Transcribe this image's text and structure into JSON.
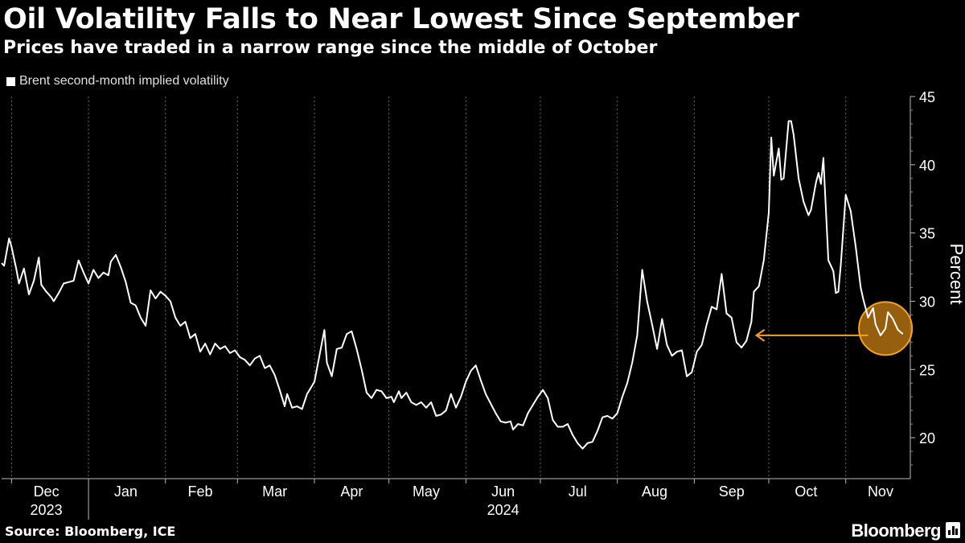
{
  "header": {
    "title": "Oil Volatility Falls to Near Lowest Since September",
    "subtitle": "Prices have traded in a narrow range since the middle of October"
  },
  "footer": {
    "source": "Source: Bloomberg, ICE",
    "brand": "Bloomberg"
  },
  "chart_data": {
    "type": "line",
    "title": "Oil Volatility Falls to Near Lowest Since September",
    "subtitle": "Prices have traded in a narrow range since the middle of October",
    "xlabel": "",
    "ylabel": "Percent",
    "ylim": [
      17,
      45
    ],
    "yticks": [
      20,
      25,
      30,
      35,
      40,
      45
    ],
    "grid": "vertical dashed at month boundaries",
    "legend_position": "top-left",
    "x_range": [
      "2023-11-27",
      "2024-11-27"
    ],
    "month_labels": [
      {
        "label": "Dec",
        "date": "2023-12-15"
      },
      {
        "label": "Jan",
        "date": "2024-01-16"
      },
      {
        "label": "Feb",
        "date": "2024-02-15"
      },
      {
        "label": "Mar",
        "date": "2024-03-16"
      },
      {
        "label": "Apr",
        "date": "2024-04-16"
      },
      {
        "label": "May",
        "date": "2024-05-16"
      },
      {
        "label": "Jun",
        "date": "2024-06-16"
      },
      {
        "label": "Jul",
        "date": "2024-07-16"
      },
      {
        "label": "Aug",
        "date": "2024-08-16"
      },
      {
        "label": "Sep",
        "date": "2024-09-16"
      },
      {
        "label": "Oct",
        "date": "2024-10-16"
      },
      {
        "label": "Nov",
        "date": "2024-11-15"
      }
    ],
    "month_boundaries": [
      "2023-12-01",
      "2024-01-01",
      "2024-02-01",
      "2024-03-01",
      "2024-04-01",
      "2024-05-01",
      "2024-06-01",
      "2024-07-01",
      "2024-08-01",
      "2024-09-01",
      "2024-10-01",
      "2024-11-01"
    ],
    "year_labels": [
      {
        "label": "2023",
        "date": "2023-12-15"
      },
      {
        "label": "2024",
        "date": "2024-06-16"
      }
    ],
    "year_divider": "2024-01-01",
    "series": [
      {
        "name": "Brent second-month implied volatility",
        "color": "#ffffff",
        "points": [
          [
            "2023-11-27",
            32.8
          ],
          [
            "2023-11-28",
            32.6
          ],
          [
            "2023-11-30",
            34.6
          ],
          [
            "2023-12-01",
            34.0
          ],
          [
            "2023-12-03",
            32.3
          ],
          [
            "2023-12-04",
            31.3
          ],
          [
            "2023-12-06",
            32.4
          ],
          [
            "2023-12-08",
            30.5
          ],
          [
            "2023-12-10",
            31.5
          ],
          [
            "2023-12-12",
            33.2
          ],
          [
            "2023-12-13",
            31.2
          ],
          [
            "2023-12-15",
            30.7
          ],
          [
            "2023-12-17",
            30.3
          ],
          [
            "2023-12-18",
            30.0
          ],
          [
            "2023-12-20",
            30.6
          ],
          [
            "2023-12-22",
            31.3
          ],
          [
            "2023-12-24",
            31.4
          ],
          [
            "2023-12-26",
            31.5
          ],
          [
            "2023-12-28",
            33.0
          ],
          [
            "2023-12-30",
            32.1
          ],
          [
            "2024-01-01",
            31.3
          ],
          [
            "2024-01-03",
            32.3
          ],
          [
            "2024-01-05",
            31.7
          ],
          [
            "2024-01-07",
            32.1
          ],
          [
            "2024-01-09",
            31.9
          ],
          [
            "2024-01-10",
            32.9
          ],
          [
            "2024-01-12",
            33.4
          ],
          [
            "2024-01-14",
            32.5
          ],
          [
            "2024-01-16",
            31.4
          ],
          [
            "2024-01-18",
            29.9
          ],
          [
            "2024-01-20",
            29.7
          ],
          [
            "2024-01-22",
            28.8
          ],
          [
            "2024-01-24",
            28.2
          ],
          [
            "2024-01-26",
            30.8
          ],
          [
            "2024-01-28",
            30.2
          ],
          [
            "2024-01-30",
            30.7
          ],
          [
            "2024-02-01",
            30.4
          ],
          [
            "2024-02-03",
            30.0
          ],
          [
            "2024-02-05",
            28.8
          ],
          [
            "2024-02-07",
            28.2
          ],
          [
            "2024-02-09",
            28.5
          ],
          [
            "2024-02-11",
            27.3
          ],
          [
            "2024-02-13",
            27.6
          ],
          [
            "2024-02-15",
            26.3
          ],
          [
            "2024-02-17",
            26.9
          ],
          [
            "2024-02-19",
            26.1
          ],
          [
            "2024-02-21",
            26.9
          ],
          [
            "2024-02-23",
            26.5
          ],
          [
            "2024-02-25",
            26.7
          ],
          [
            "2024-02-27",
            26.2
          ],
          [
            "2024-02-29",
            26.4
          ],
          [
            "2024-03-02",
            25.9
          ],
          [
            "2024-03-04",
            25.7
          ],
          [
            "2024-03-06",
            25.3
          ],
          [
            "2024-03-08",
            25.8
          ],
          [
            "2024-03-10",
            26.0
          ],
          [
            "2024-03-12",
            25.1
          ],
          [
            "2024-03-14",
            25.3
          ],
          [
            "2024-03-16",
            24.6
          ],
          [
            "2024-03-18",
            23.5
          ],
          [
            "2024-03-20",
            22.3
          ],
          [
            "2024-03-21",
            23.2
          ],
          [
            "2024-03-23",
            22.2
          ],
          [
            "2024-03-25",
            22.3
          ],
          [
            "2024-03-27",
            22.1
          ],
          [
            "2024-03-29",
            23.2
          ],
          [
            "2024-04-01",
            24.1
          ],
          [
            "2024-04-03",
            26.0
          ],
          [
            "2024-04-05",
            27.9
          ],
          [
            "2024-04-06",
            25.5
          ],
          [
            "2024-04-08",
            24.5
          ],
          [
            "2024-04-10",
            26.5
          ],
          [
            "2024-04-12",
            26.6
          ],
          [
            "2024-04-14",
            27.6
          ],
          [
            "2024-04-16",
            27.8
          ],
          [
            "2024-04-18",
            26.5
          ],
          [
            "2024-04-20",
            25.0
          ],
          [
            "2024-04-22",
            23.3
          ],
          [
            "2024-04-24",
            22.9
          ],
          [
            "2024-04-26",
            23.5
          ],
          [
            "2024-04-28",
            23.4
          ],
          [
            "2024-04-30",
            22.9
          ],
          [
            "2024-05-02",
            23.0
          ],
          [
            "2024-05-03",
            22.6
          ],
          [
            "2024-05-05",
            23.4
          ],
          [
            "2024-05-06",
            22.9
          ],
          [
            "2024-05-08",
            23.3
          ],
          [
            "2024-05-10",
            22.6
          ],
          [
            "2024-05-12",
            22.4
          ],
          [
            "2024-05-14",
            22.6
          ],
          [
            "2024-05-16",
            22.2
          ],
          [
            "2024-05-18",
            22.6
          ],
          [
            "2024-05-20",
            21.6
          ],
          [
            "2024-05-22",
            21.7
          ],
          [
            "2024-05-24",
            22.0
          ],
          [
            "2024-05-26",
            23.2
          ],
          [
            "2024-05-28",
            22.2
          ],
          [
            "2024-05-30",
            23.0
          ],
          [
            "2024-06-01",
            24.1
          ],
          [
            "2024-06-03",
            24.9
          ],
          [
            "2024-06-05",
            25.3
          ],
          [
            "2024-06-07",
            24.2
          ],
          [
            "2024-06-09",
            23.2
          ],
          [
            "2024-06-11",
            22.5
          ],
          [
            "2024-06-13",
            21.8
          ],
          [
            "2024-06-15",
            21.2
          ],
          [
            "2024-06-17",
            21.1
          ],
          [
            "2024-06-19",
            21.2
          ],
          [
            "2024-06-20",
            20.6
          ],
          [
            "2024-06-22",
            21.0
          ],
          [
            "2024-06-24",
            20.9
          ],
          [
            "2024-06-26",
            21.8
          ],
          [
            "2024-06-28",
            22.4
          ],
          [
            "2024-06-30",
            23.0
          ],
          [
            "2024-07-02",
            23.5
          ],
          [
            "2024-07-04",
            22.9
          ],
          [
            "2024-07-06",
            21.3
          ],
          [
            "2024-07-08",
            20.8
          ],
          [
            "2024-07-10",
            20.8
          ],
          [
            "2024-07-12",
            21.0
          ],
          [
            "2024-07-14",
            20.2
          ],
          [
            "2024-07-16",
            19.6
          ],
          [
            "2024-07-18",
            19.2
          ],
          [
            "2024-07-20",
            19.6
          ],
          [
            "2024-07-22",
            19.7
          ],
          [
            "2024-07-24",
            20.5
          ],
          [
            "2024-07-26",
            21.5
          ],
          [
            "2024-07-28",
            21.6
          ],
          [
            "2024-07-30",
            21.4
          ],
          [
            "2024-08-01",
            21.8
          ],
          [
            "2024-08-03",
            23.0
          ],
          [
            "2024-08-05",
            24.0
          ],
          [
            "2024-08-07",
            25.5
          ],
          [
            "2024-08-09",
            27.5
          ],
          [
            "2024-08-11",
            32.3
          ],
          [
            "2024-08-13",
            30.0
          ],
          [
            "2024-08-15",
            28.3
          ],
          [
            "2024-08-17",
            26.5
          ],
          [
            "2024-08-19",
            28.7
          ],
          [
            "2024-08-21",
            26.8
          ],
          [
            "2024-08-23",
            26.0
          ],
          [
            "2024-08-25",
            26.3
          ],
          [
            "2024-08-27",
            26.4
          ],
          [
            "2024-08-29",
            24.5
          ],
          [
            "2024-08-31",
            24.8
          ],
          [
            "2024-09-02",
            26.3
          ],
          [
            "2024-09-04",
            26.8
          ],
          [
            "2024-09-06",
            28.3
          ],
          [
            "2024-09-08",
            29.6
          ],
          [
            "2024-09-10",
            29.4
          ],
          [
            "2024-09-12",
            32.0
          ],
          [
            "2024-09-14",
            29.1
          ],
          [
            "2024-09-16",
            28.8
          ],
          [
            "2024-09-18",
            27.0
          ],
          [
            "2024-09-20",
            26.6
          ],
          [
            "2024-09-22",
            27.1
          ],
          [
            "2024-09-24",
            28.5
          ],
          [
            "2024-09-25",
            30.7
          ],
          [
            "2024-09-27",
            31.1
          ],
          [
            "2024-09-29",
            33.0
          ],
          [
            "2024-10-01",
            36.5
          ],
          [
            "2024-10-02",
            42.0
          ],
          [
            "2024-10-03",
            39.2
          ],
          [
            "2024-10-05",
            41.2
          ],
          [
            "2024-10-06",
            38.9
          ],
          [
            "2024-10-07",
            39.0
          ],
          [
            "2024-10-09",
            43.2
          ],
          [
            "2024-10-10",
            43.2
          ],
          [
            "2024-10-11",
            42.2
          ],
          [
            "2024-10-13",
            39.0
          ],
          [
            "2024-10-15",
            37.3
          ],
          [
            "2024-10-17",
            36.3
          ],
          [
            "2024-10-18",
            36.7
          ],
          [
            "2024-10-20",
            38.7
          ],
          [
            "2024-10-21",
            39.4
          ],
          [
            "2024-10-22",
            38.6
          ],
          [
            "2024-10-23",
            40.5
          ],
          [
            "2024-10-25",
            33.0
          ],
          [
            "2024-10-27",
            32.2
          ],
          [
            "2024-10-28",
            30.6
          ],
          [
            "2024-10-29",
            30.7
          ],
          [
            "2024-10-30",
            32.7
          ],
          [
            "2024-11-01",
            37.8
          ],
          [
            "2024-11-03",
            36.6
          ],
          [
            "2024-11-05",
            34.0
          ],
          [
            "2024-11-07",
            31.0
          ],
          [
            "2024-11-08",
            30.2
          ],
          [
            "2024-11-10",
            28.8
          ],
          [
            "2024-11-12",
            29.5
          ],
          [
            "2024-11-13",
            28.3
          ],
          [
            "2024-11-15",
            27.5
          ],
          [
            "2024-11-17",
            28.0
          ],
          [
            "2024-11-18",
            29.2
          ],
          [
            "2024-11-20",
            28.7
          ],
          [
            "2024-11-22",
            27.9
          ],
          [
            "2024-11-24",
            27.6
          ]
        ]
      }
    ],
    "annotations": [
      {
        "type": "arrow",
        "direction": "left",
        "color": "#f0a030",
        "level": 27.5,
        "from_date": "2024-11-10",
        "to_date": "2024-09-26"
      },
      {
        "type": "circle-highlight",
        "color": "#f0a030",
        "center_date": "2024-11-17",
        "center_value": 28.0
      }
    ]
  }
}
